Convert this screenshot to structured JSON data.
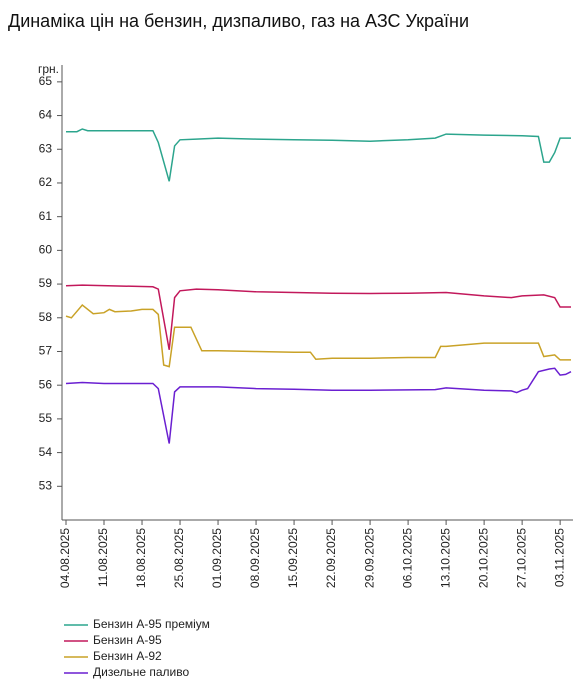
{
  "chart_data": {
    "type": "line",
    "title": "Динаміка цін на бензин, дизпаливо, газ на АЗС України",
    "y_label": "грн.",
    "xlim": [
      "04.08.2025",
      "05.11.2025"
    ],
    "xticks": [
      "04.08.2025",
      "11.08.2025",
      "18.08.2025",
      "25.08.2025",
      "01.09.2025",
      "08.09.2025",
      "15.09.2025",
      "22.09.2025",
      "29.09.2025",
      "06.10.2025",
      "13.10.2025",
      "20.10.2025",
      "27.10.2025",
      "03.11.2025"
    ],
    "ylim": [
      52,
      65.5
    ],
    "yticks": [
      53,
      54,
      55,
      56,
      57,
      58,
      59,
      60,
      61,
      62,
      63,
      64,
      65
    ],
    "legend": "bottom",
    "series": [
      {
        "name": "Бензин А-95 преміум",
        "color": "#2ca58d",
        "x": [
          "04.08.2025",
          "06.08.2025",
          "07.08.2025",
          "08.08.2025",
          "20.08.2025",
          "21.08.2025",
          "23.08.2025",
          "24.08.2025",
          "25.08.2025",
          "28.08.2025",
          "01.09.2025",
          "08.09.2025",
          "15.09.2025",
          "22.09.2025",
          "29.09.2025",
          "06.10.2025",
          "11.10.2025",
          "13.10.2025",
          "20.10.2025",
          "27.10.2025",
          "30.10.2025",
          "31.10.2025",
          "01.11.2025",
          "02.11.2025",
          "03.11.2025",
          "05.11.2025"
        ],
        "values": [
          63.52,
          63.52,
          63.6,
          63.55,
          63.55,
          63.2,
          62.05,
          63.1,
          63.28,
          63.3,
          63.33,
          63.3,
          63.28,
          63.27,
          63.24,
          63.28,
          63.33,
          63.45,
          63.42,
          63.4,
          63.38,
          62.62,
          62.62,
          62.9,
          63.33,
          63.33
        ]
      },
      {
        "name": "Бензин А-95",
        "color": "#c2185b",
        "x": [
          "04.08.2025",
          "07.08.2025",
          "20.08.2025",
          "21.08.2025",
          "23.08.2025",
          "24.08.2025",
          "25.08.2025",
          "28.08.2025",
          "01.09.2025",
          "08.09.2025",
          "15.09.2025",
          "22.09.2025",
          "29.09.2025",
          "06.10.2025",
          "13.10.2025",
          "20.10.2025",
          "25.10.2025",
          "27.10.2025",
          "31.10.2025",
          "02.11.2025",
          "03.11.2025",
          "05.11.2025"
        ],
        "values": [
          58.95,
          58.97,
          58.92,
          58.85,
          57.05,
          58.6,
          58.8,
          58.85,
          58.83,
          58.77,
          58.75,
          58.73,
          58.72,
          58.73,
          58.75,
          58.65,
          58.6,
          58.65,
          58.68,
          58.6,
          58.32,
          58.32
        ]
      },
      {
        "name": "Бензин А-92",
        "color": "#c9a227",
        "x": [
          "04.08.2025",
          "05.08.2025",
          "07.08.2025",
          "09.08.2025",
          "11.08.2025",
          "12.08.2025",
          "13.08.2025",
          "16.08.2025",
          "18.08.2025",
          "20.08.2025",
          "21.08.2025",
          "22.08.2025",
          "23.08.2025",
          "24.08.2025",
          "27.08.2025",
          "29.08.2025",
          "01.09.2025",
          "08.09.2025",
          "15.09.2025",
          "18.09.2025",
          "19.09.2025",
          "22.09.2025",
          "29.09.2025",
          "06.10.2025",
          "11.10.2025",
          "12.10.2025",
          "13.10.2025",
          "20.10.2025",
          "27.10.2025",
          "30.10.2025",
          "31.10.2025",
          "02.11.2025",
          "03.11.2025",
          "05.11.2025"
        ],
        "values": [
          58.05,
          58.0,
          58.38,
          58.12,
          58.15,
          58.25,
          58.18,
          58.2,
          58.25,
          58.25,
          58.1,
          56.6,
          56.55,
          57.72,
          57.72,
          57.02,
          57.02,
          57.0,
          56.98,
          56.98,
          56.77,
          56.8,
          56.8,
          56.82,
          56.82,
          57.15,
          57.15,
          57.25,
          57.25,
          57.25,
          56.85,
          56.9,
          56.75,
          56.75
        ]
      },
      {
        "name": "Дизельне паливо",
        "color": "#6a1fd1",
        "x": [
          "04.08.2025",
          "07.08.2025",
          "11.08.2025",
          "18.08.2025",
          "20.08.2025",
          "21.08.2025",
          "23.08.2025",
          "24.08.2025",
          "25.08.2025",
          "01.09.2025",
          "08.09.2025",
          "15.09.2025",
          "22.09.2025",
          "29.09.2025",
          "11.10.2025",
          "13.10.2025",
          "20.10.2025",
          "25.10.2025",
          "26.10.2025",
          "27.10.2025",
          "28.10.2025",
          "30.10.2025",
          "01.11.2025",
          "02.11.2025",
          "03.11.2025",
          "04.11.2025",
          "05.11.2025"
        ],
        "values": [
          56.05,
          56.08,
          56.05,
          56.05,
          56.05,
          55.9,
          54.27,
          55.8,
          55.95,
          55.95,
          55.9,
          55.88,
          55.85,
          55.85,
          55.87,
          55.92,
          55.85,
          55.83,
          55.78,
          55.85,
          55.9,
          56.4,
          56.48,
          56.5,
          56.3,
          56.32,
          56.4
        ]
      }
    ]
  }
}
